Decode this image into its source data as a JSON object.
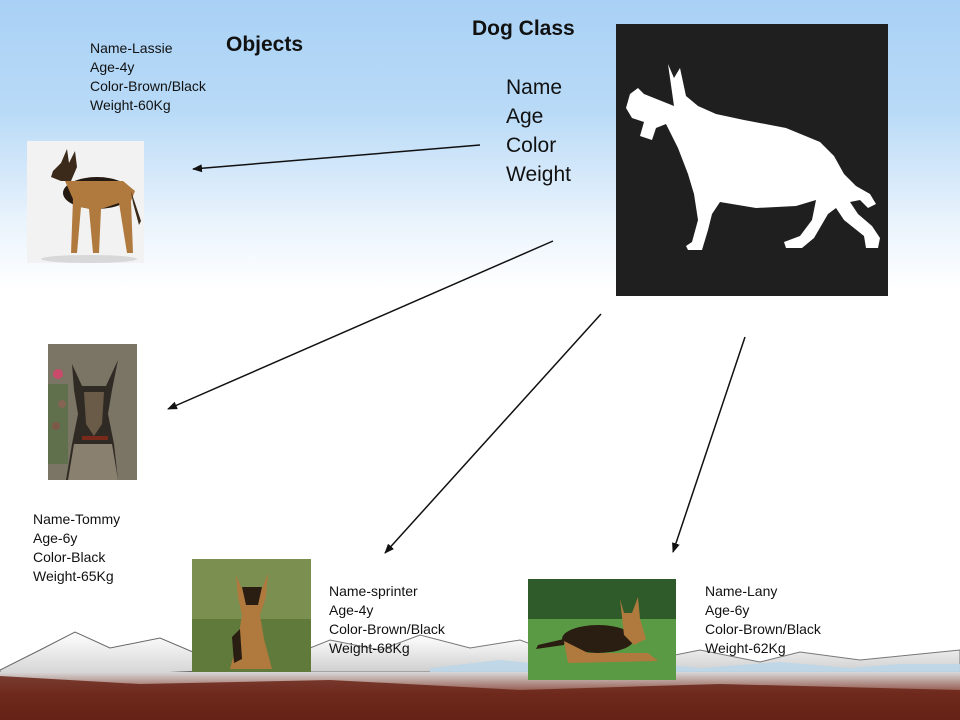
{
  "titles": {
    "class_title": "Dog Class",
    "objects_title": "Objects"
  },
  "class_attributes": [
    "Name",
    "Age",
    "Color",
    "Weight"
  ],
  "icons": {
    "class_image": "german-shepherd-silhouette-icon"
  },
  "objects": {
    "lassie": {
      "name": "Name-Lassie",
      "age": "Age-4y",
      "color": "Color-Brown/Black",
      "weight": "Weight-60Kg"
    },
    "tommy": {
      "name": "Name-Tommy",
      "age": "Age-6y",
      "color": "Color-Black",
      "weight": "Weight-65Kg"
    },
    "sprinter": {
      "name": "Name-sprinter",
      "age": "Age-4y",
      "color": "Color-Brown/Black",
      "weight": "Weight-68Kg"
    },
    "lany": {
      "name": "Name-Lany",
      "age": "Age-6y",
      "color": "Color-Brown/Black",
      "weight": "Weight-62Kg"
    }
  },
  "colors": {
    "sky": "#a9d1f5",
    "silhouette_bg": "#1f1f1f",
    "ground_dark": "#5a1f14",
    "arrow": "#111111"
  }
}
